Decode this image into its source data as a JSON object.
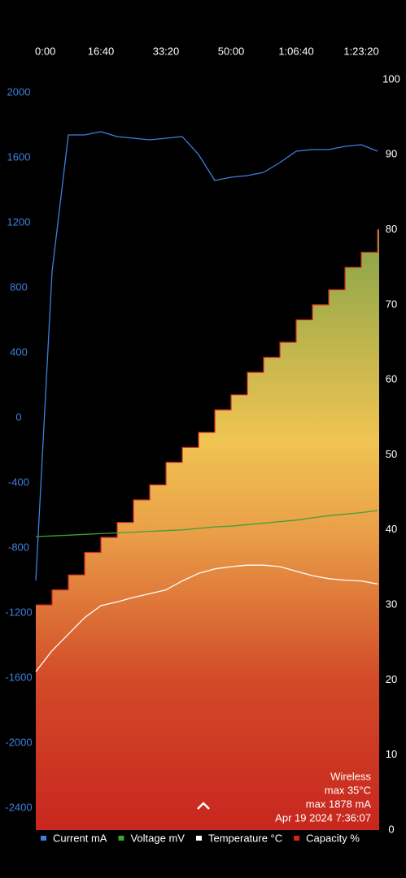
{
  "chart_data": {
    "type": "line",
    "x": [
      0,
      250,
      500,
      750,
      1000,
      1250,
      1500,
      1750,
      2000,
      2250,
      2500,
      2750,
      3000,
      3250,
      3500,
      3750,
      4000,
      4250,
      4500,
      4750,
      5000,
      5250
    ],
    "xlim": [
      0,
      5275
    ],
    "xticks": [
      {
        "value": 0,
        "label": "0:00"
      },
      {
        "value": 1000,
        "label": "16:40"
      },
      {
        "value": 2000,
        "label": "33:20"
      },
      {
        "value": 3000,
        "label": "50:00"
      },
      {
        "value": 4000,
        "label": "1:06:40"
      },
      {
        "value": 5000,
        "label": "1:23:20"
      }
    ],
    "ylim": [
      -2535,
      2080
    ],
    "yticks": [
      2000,
      1600,
      1200,
      800,
      400,
      0,
      -400,
      -800,
      -1200,
      -1600,
      -2000,
      -2400
    ],
    "y2lim": [
      0,
      100
    ],
    "y2ticks": [
      100,
      90,
      80,
      70,
      60,
      50,
      40,
      30,
      20,
      10,
      0
    ],
    "series": [
      {
        "name": "Current mA",
        "color": "#3f7fdc",
        "values": [
          -1000,
          900,
          1740,
          1740,
          1760,
          1730,
          1720,
          1710,
          1720,
          1730,
          1620,
          1460,
          1480,
          1490,
          1510,
          1570,
          1640,
          1650,
          1650,
          1670,
          1680,
          1640
        ]
      },
      {
        "name": "Voltage mV",
        "color": "#3ea035",
        "axis": "y2",
        "values": [
          39.1,
          39.2,
          39.3,
          39.4,
          39.5,
          39.6,
          39.7,
          39.8,
          39.9,
          40.0,
          40.2,
          40.4,
          40.5,
          40.7,
          40.9,
          41.1,
          41.3,
          41.6,
          41.9,
          42.1,
          42.3,
          42.6
        ]
      },
      {
        "name": "Temperature °C",
        "color": "#ffffff",
        "axis": "y2",
        "values": [
          21.1,
          23.9,
          26.1,
          28.3,
          29.9,
          30.4,
          31.0,
          31.5,
          32.0,
          33.2,
          34.2,
          34.8,
          35.1,
          35.3,
          35.3,
          35.1,
          34.5,
          33.9,
          33.5,
          33.3,
          33.2,
          32.8
        ]
      },
      {
        "name": "Capacity %",
        "color": "#d0281e",
        "axis": "y2",
        "fill": "area",
        "step": true,
        "values": [
          30,
          32,
          34,
          37,
          39,
          41,
          44,
          46,
          49,
          51,
          53,
          56,
          58,
          61,
          63,
          65,
          68,
          70,
          72,
          75,
          77,
          80
        ]
      }
    ],
    "annotations": [
      "Wireless",
      "max 35°C",
      "max 1878 mA",
      "Apr 19 2024 7:36:07"
    ]
  }
}
